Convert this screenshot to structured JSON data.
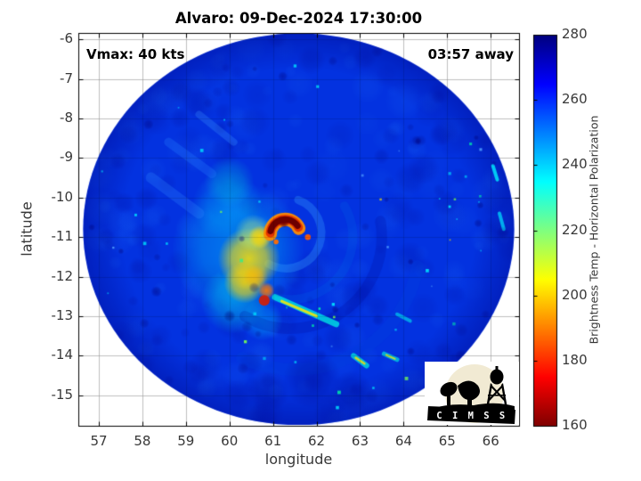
{
  "chart_data": {
    "type": "heatmap",
    "title": "Alvaro: 09-Dec-2024 17:30:00",
    "storm": {
      "name": "Alvaro",
      "datetime": "09-Dec-2024 17:30:00",
      "vmax_kts": 40,
      "time_offset": "03:57 away"
    },
    "annotations": {
      "vmax": "Vmax: 40 kts",
      "eta": "03:57 away"
    },
    "axes": {
      "xlabel": "longitude",
      "ylabel": "latitude",
      "xlim": [
        56.53,
        66.65
      ],
      "ylim": [
        -15.77,
        -5.84
      ],
      "xticks": [
        57,
        58,
        59,
        60,
        61,
        62,
        63,
        64,
        65,
        66
      ],
      "yticks": [
        -6,
        -7,
        -8,
        -9,
        -10,
        -11,
        -12,
        -13,
        -14,
        -15
      ],
      "grid": true
    },
    "colorbar": {
      "label": "Brightness Temp - Horizontal Polarization",
      "min": 160,
      "max": 280,
      "ticks": [
        160,
        180,
        200,
        220,
        240,
        260,
        280
      ],
      "colormap": [
        {
          "v": 160,
          "c": "#7f0000"
        },
        {
          "v": 175,
          "c": "#ff0000"
        },
        {
          "v": 205,
          "c": "#ffff00"
        },
        {
          "v": 235,
          "c": "#00ffff"
        },
        {
          "v": 265,
          "c": "#0000ff"
        },
        {
          "v": 280,
          "c": "#00007f"
        }
      ]
    },
    "swath": {
      "center_lon": 61.59,
      "center_lat": -10.8,
      "radius_deg": 4.95,
      "base_temp_K": 258,
      "base_color": "#0332e0"
    },
    "features": [
      {
        "type": "blob",
        "lon": 60.2,
        "lat": -11.3,
        "r": 1.6,
        "color": "0,210,255",
        "alpha": 0.45
      },
      {
        "type": "blob",
        "lon": 59.95,
        "lat": -10.2,
        "r": 0.85,
        "color": "0,200,255",
        "alpha": 0.3
      },
      {
        "type": "blob",
        "lon": 60.0,
        "lat": -9.6,
        "r": 0.6,
        "color": "0,220,210",
        "alpha": 0.3
      },
      {
        "type": "blob",
        "lon": 60.1,
        "lat": -12.6,
        "r": 0.8,
        "color": "0,235,235",
        "alpha": 0.4
      },
      {
        "type": "blob",
        "lon": 60.75,
        "lat": -13.1,
        "r": 0.5,
        "color": "0,220,255",
        "alpha": 0.35
      },
      {
        "type": "streak",
        "x1": 58.6,
        "y1": -8.6,
        "x2": 59.6,
        "y2": -9.4,
        "w": 10,
        "color": "40,130,255",
        "alpha": 0.28
      },
      {
        "type": "streak",
        "x1": 58.2,
        "y1": -9.5,
        "x2": 59.3,
        "y2": -10.4,
        "w": 12,
        "color": "50,140,255",
        "alpha": 0.26
      },
      {
        "type": "streak",
        "x1": 59.3,
        "y1": -7.9,
        "x2": 60.1,
        "y2": -8.6,
        "w": 8,
        "color": "60,150,255",
        "alpha": 0.28
      },
      {
        "type": "arc",
        "lon": 61.4,
        "lat": -11.0,
        "r": 1.5,
        "a0": -30,
        "a1": 110,
        "w": 10,
        "color": "0,90,230",
        "alpha": 0.3
      },
      {
        "type": "arc",
        "lon": 61.4,
        "lat": -11.0,
        "r": 2.2,
        "a0": -10,
        "a1": 120,
        "w": 12,
        "color": "0,0,140",
        "alpha": 0.18
      },
      {
        "type": "arc",
        "lon": 61.5,
        "lat": -11.2,
        "r": 3.0,
        "a0": 10,
        "a1": 115,
        "w": 14,
        "color": "0,70,220",
        "alpha": 0.22
      },
      {
        "type": "arc",
        "lon": 61.3,
        "lat": -10.9,
        "r": 0.85,
        "a0": -70,
        "a1": 120,
        "w": 9,
        "color": "60,170,255",
        "alpha": 0.3
      },
      {
        "type": "blob",
        "lon": 61.9,
        "lat": -14.6,
        "r": 0.7,
        "color": "0,0,130",
        "alpha": 0.3
      },
      {
        "type": "blob",
        "lon": 62.8,
        "lat": -14.9,
        "r": 0.5,
        "color": "0,0,130",
        "alpha": 0.28
      },
      {
        "type": "blob",
        "lon": 60.9,
        "lat": -14.9,
        "r": 0.5,
        "color": "0,0,130",
        "alpha": 0.28
      },
      {
        "type": "blob",
        "lon": 60.45,
        "lat": -11.55,
        "r": 0.75,
        "color": "255,225,0",
        "alpha": 0.85
      },
      {
        "type": "blob",
        "lon": 60.35,
        "lat": -12.15,
        "r": 0.5,
        "color": "255,210,0",
        "alpha": 0.8
      },
      {
        "type": "blob",
        "lon": 60.55,
        "lat": -10.9,
        "r": 0.45,
        "color": "200,255,120",
        "alpha": 0.5
      },
      {
        "type": "blob",
        "lon": 60.7,
        "lat": -11.0,
        "r": 0.28,
        "color": "255,215,0",
        "alpha": 0.9
      },
      {
        "type": "blob",
        "lon": 60.6,
        "lat": -12.0,
        "r": 0.3,
        "color": "255,180,0",
        "alpha": 0.6
      },
      {
        "type": "blob",
        "lon": 60.85,
        "lat": -12.35,
        "r": 0.2,
        "color": "255,120,0",
        "alpha": 0.9
      },
      {
        "type": "dot",
        "lon": 60.8,
        "lat": -12.6,
        "r": 0.13,
        "color": "215,30,0",
        "alpha": 0.9
      },
      {
        "type": "arc",
        "lon": 61.28,
        "lat": -10.93,
        "r": 0.36,
        "a0": 180,
        "a1": 336,
        "w": 15,
        "color": "255,140,0",
        "alpha": 0.95
      },
      {
        "type": "arc",
        "lon": 61.28,
        "lat": -10.93,
        "r": 0.36,
        "a0": 185,
        "a1": 332,
        "w": 10,
        "color": "226,48,0",
        "alpha": 0.95
      },
      {
        "type": "arc",
        "lon": 61.28,
        "lat": -10.93,
        "r": 0.36,
        "a0": 192,
        "a1": 326,
        "w": 7,
        "color": "110,0,0",
        "alpha": 1
      },
      {
        "type": "blob",
        "lon": 61.25,
        "lat": -10.62,
        "r": 0.14,
        "color": "110,0,0",
        "alpha": 1
      },
      {
        "type": "dot",
        "lon": 61.07,
        "lat": -11.12,
        "r": 0.06,
        "color": "255,110,0",
        "alpha": 0.95
      },
      {
        "type": "dot",
        "lon": 61.8,
        "lat": -11.0,
        "r": 0.07,
        "color": "255,90,0",
        "alpha": 0.95
      },
      {
        "type": "streak",
        "x1": 61.05,
        "y1": -12.52,
        "x2": 62.45,
        "y2": -13.2,
        "w": 7,
        "color": "0,240,230",
        "alpha": 0.75
      },
      {
        "type": "streak",
        "x1": 61.2,
        "y1": -12.62,
        "x2": 62.0,
        "y2": -13.0,
        "w": 3,
        "color": "255,230,0",
        "alpha": 0.85
      },
      {
        "type": "streak",
        "x1": 62.85,
        "y1": -14.0,
        "x2": 63.15,
        "y2": -14.25,
        "w": 6,
        "color": "0,240,220",
        "alpha": 0.7
      },
      {
        "type": "streak",
        "x1": 62.9,
        "y1": -14.05,
        "x2": 63.1,
        "y2": -14.2,
        "w": 2.5,
        "color": "255,220,0",
        "alpha": 0.8
      },
      {
        "type": "streak",
        "x1": 63.55,
        "y1": -13.95,
        "x2": 63.85,
        "y2": -14.1,
        "w": 5,
        "color": "0,240,220",
        "alpha": 0.65
      },
      {
        "type": "streak",
        "x1": 63.6,
        "y1": -13.98,
        "x2": 63.8,
        "y2": -14.08,
        "w": 2,
        "color": "255,230,0",
        "alpha": 0.75
      },
      {
        "type": "streak",
        "x1": 63.85,
        "y1": -12.95,
        "x2": 64.15,
        "y2": -13.12,
        "w": 4,
        "color": "0,230,240",
        "alpha": 0.6
      },
      {
        "type": "streak",
        "x1": 66.05,
        "y1": -9.2,
        "x2": 66.15,
        "y2": -9.55,
        "w": 4,
        "color": "0,240,255",
        "alpha": 0.8
      },
      {
        "type": "streak",
        "x1": 66.2,
        "y1": -10.4,
        "x2": 66.3,
        "y2": -10.8,
        "w": 4,
        "color": "0,230,255",
        "alpha": 0.7
      },
      {
        "type": "streak",
        "x1": 65.6,
        "y1": -6.9,
        "x2": 65.85,
        "y2": -7.1,
        "w": 4,
        "color": "0,235,255",
        "alpha": 0.75
      }
    ]
  },
  "logo": {
    "text": "C I M S S"
  }
}
